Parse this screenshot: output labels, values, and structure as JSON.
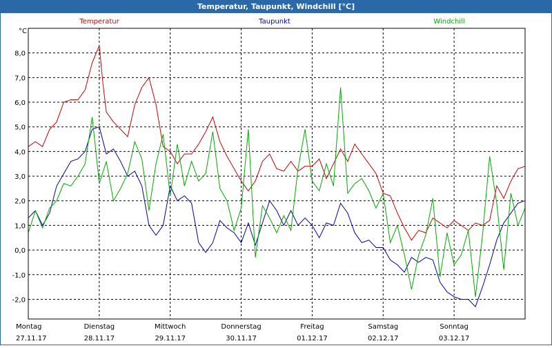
{
  "window": {
    "title": "Temperatur, Taupunkt, Windchill [°C]"
  },
  "chart_data": {
    "type": "line",
    "title": "Temperatur, Taupunkt, Windchill [°C]",
    "ylabel": "°C",
    "ylim": [
      -2.8,
      9.0
    ],
    "yticks": [
      8.0,
      7.0,
      6.0,
      5.0,
      4.0,
      3.0,
      2.0,
      1.0,
      0.0,
      -1.0,
      -2.0
    ],
    "ytick_labels": [
      "8,0",
      "7,0",
      "6,0",
      "5,0",
      "4,0",
      "3,0",
      "2,0",
      "1,0",
      "0,0",
      "-1,0",
      "-2,0"
    ],
    "xlim": [
      0,
      7
    ],
    "xticks": [
      {
        "x": 0,
        "day": "Montag",
        "date": "27.11.17"
      },
      {
        "x": 1,
        "day": "Dienstag",
        "date": "28.11.17"
      },
      {
        "x": 2,
        "day": "Mittwoch",
        "date": "29.11.17"
      },
      {
        "x": 3,
        "day": "Donnerstag",
        "date": "30.11.17"
      },
      {
        "x": 4,
        "day": "Freitag",
        "date": "01.12.17"
      },
      {
        "x": 5,
        "day": "Samstag",
        "date": "02.12.17"
      },
      {
        "x": 6,
        "day": "Sonntag",
        "date": "03.12.17"
      }
    ],
    "grid": true,
    "series": [
      {
        "name": "Temperatur",
        "color": "#cc0000",
        "x": [
          0,
          0.1,
          0.2,
          0.3,
          0.4,
          0.5,
          0.6,
          0.7,
          0.8,
          0.9,
          1.0,
          1.05,
          1.1,
          1.2,
          1.3,
          1.4,
          1.5,
          1.6,
          1.7,
          1.8,
          1.9,
          2.0,
          2.1,
          2.2,
          2.3,
          2.4,
          2.5,
          2.6,
          2.7,
          2.8,
          2.9,
          3.0,
          3.1,
          3.2,
          3.3,
          3.4,
          3.5,
          3.6,
          3.7,
          3.8,
          3.9,
          4.0,
          4.1,
          4.2,
          4.3,
          4.4,
          4.5,
          4.6,
          4.7,
          4.8,
          4.9,
          5.0,
          5.1,
          5.2,
          5.3,
          5.4,
          5.5,
          5.6,
          5.7,
          5.8,
          5.9,
          6.0,
          6.1,
          6.2,
          6.3,
          6.4,
          6.5,
          6.6,
          6.7,
          6.8,
          6.9,
          7.0
        ],
        "y": [
          4.2,
          4.4,
          4.2,
          4.9,
          5.2,
          6.0,
          6.1,
          6.1,
          6.5,
          7.6,
          8.3,
          6.8,
          5.6,
          5.2,
          4.9,
          4.6,
          5.9,
          6.6,
          7.0,
          5.9,
          4.2,
          4.0,
          3.5,
          3.9,
          3.9,
          4.3,
          4.8,
          5.4,
          4.4,
          3.8,
          3.3,
          2.8,
          2.4,
          2.8,
          3.6,
          3.9,
          3.3,
          3.2,
          3.6,
          3.2,
          3.4,
          3.4,
          3.7,
          2.9,
          3.5,
          4.1,
          3.6,
          4.3,
          3.9,
          3.5,
          3.1,
          2.3,
          2.2,
          1.5,
          0.9,
          0.4,
          0.8,
          0.7,
          1.3,
          1.1,
          0.9,
          1.2,
          1.0,
          0.8,
          1.1,
          1.0,
          1.2,
          2.6,
          2.1,
          2.8,
          3.3,
          3.4
        ]
      },
      {
        "name": "Taupunkt",
        "color": "#0000aa",
        "x": [
          0,
          0.1,
          0.2,
          0.3,
          0.4,
          0.5,
          0.6,
          0.7,
          0.8,
          0.9,
          1.0,
          1.1,
          1.2,
          1.3,
          1.4,
          1.5,
          1.6,
          1.7,
          1.8,
          1.9,
          2.0,
          2.1,
          2.2,
          2.3,
          2.4,
          2.5,
          2.6,
          2.7,
          2.8,
          2.9,
          3.0,
          3.1,
          3.2,
          3.3,
          3.4,
          3.5,
          3.6,
          3.7,
          3.8,
          3.9,
          4.0,
          4.1,
          4.2,
          4.3,
          4.4,
          4.5,
          4.6,
          4.7,
          4.8,
          4.9,
          5.0,
          5.1,
          5.2,
          5.3,
          5.4,
          5.5,
          5.6,
          5.7,
          5.8,
          5.9,
          6.0,
          6.1,
          6.2,
          6.3,
          6.4,
          6.5,
          6.6,
          6.7,
          6.8,
          6.9,
          7.0
        ],
        "y": [
          1.3,
          1.6,
          1.0,
          1.5,
          2.6,
          3.1,
          3.6,
          3.7,
          4.0,
          4.9,
          5.0,
          3.9,
          4.1,
          3.6,
          3.0,
          3.2,
          2.6,
          1.0,
          0.6,
          1.0,
          2.6,
          2.0,
          2.2,
          1.9,
          0.3,
          -0.1,
          0.3,
          1.2,
          0.9,
          0.7,
          0.3,
          1.1,
          0.2,
          1.1,
          2.0,
          1.6,
          1.0,
          1.6,
          1.0,
          1.3,
          1.0,
          0.5,
          1.1,
          1.0,
          1.9,
          1.5,
          0.7,
          0.3,
          0.4,
          0.1,
          0.1,
          -0.4,
          -0.6,
          -0.9,
          -0.3,
          -0.5,
          -0.3,
          -0.4,
          -1.3,
          -1.7,
          -1.9,
          -2.0,
          -2.0,
          -2.3,
          -1.5,
          -0.6,
          0.4,
          1.1,
          1.5,
          1.9,
          2.0
        ]
      },
      {
        "name": "Windchill",
        "color": "#00aa00",
        "x": [
          0,
          0.1,
          0.2,
          0.3,
          0.4,
          0.5,
          0.6,
          0.7,
          0.8,
          0.9,
          1.0,
          1.1,
          1.2,
          1.3,
          1.4,
          1.5,
          1.6,
          1.7,
          1.8,
          1.9,
          2.0,
          2.1,
          2.2,
          2.3,
          2.4,
          2.5,
          2.6,
          2.7,
          2.8,
          2.9,
          3.0,
          3.1,
          3.2,
          3.3,
          3.4,
          3.5,
          3.6,
          3.7,
          3.8,
          3.9,
          4.0,
          4.1,
          4.2,
          4.3,
          4.4,
          4.5,
          4.6,
          4.7,
          4.8,
          4.9,
          5.0,
          5.1,
          5.2,
          5.3,
          5.4,
          5.5,
          5.6,
          5.7,
          5.8,
          5.9,
          6.0,
          6.1,
          6.2,
          6.3,
          6.4,
          6.5,
          6.6,
          6.7,
          6.8,
          6.9,
          7.0
        ],
        "y": [
          0.7,
          1.6,
          0.9,
          1.7,
          2.0,
          2.7,
          2.6,
          3.0,
          3.5,
          5.4,
          2.7,
          3.6,
          2.0,
          2.5,
          3.1,
          4.4,
          3.7,
          1.6,
          3.5,
          4.7,
          2.2,
          4.3,
          2.6,
          3.6,
          2.8,
          3.1,
          4.8,
          2.5,
          2.0,
          0.8,
          1.7,
          4.9,
          -0.3,
          1.8,
          1.3,
          0.7,
          1.4,
          0.8,
          3.3,
          4.9,
          2.8,
          2.4,
          3.5,
          2.6,
          6.6,
          2.3,
          2.7,
          2.9,
          2.4,
          1.7,
          2.3,
          0.3,
          1.0,
          -0.2,
          -1.6,
          -0.2,
          0.6,
          2.1,
          -1.1,
          0.7,
          -0.6,
          -0.2,
          0.8,
          -1.9,
          0.6,
          3.8,
          1.9,
          -0.8,
          2.3,
          1.0,
          1.7
        ]
      }
    ]
  }
}
